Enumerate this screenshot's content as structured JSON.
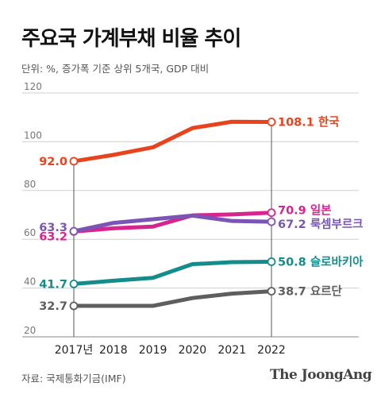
{
  "header": {
    "title": "주요국 가계부채 비율 추이",
    "subtitle": "단위: %, 증가폭 기준 상위 5개국, GDP 대비"
  },
  "footer": {
    "source": "자료: 국제통화기금(IMF)",
    "brand": "The JoongAng"
  },
  "chart_data": {
    "type": "line",
    "x": [
      "2017년",
      "2018",
      "2019",
      "2020",
      "2021",
      "2022"
    ],
    "ylim": [
      20,
      120
    ],
    "yticks": [
      "20",
      "40",
      "60",
      "80",
      "100",
      "120"
    ],
    "grid": true,
    "series": [
      {
        "name": "한국",
        "color": "#e8431c",
        "values": [
          92.0,
          94.6,
          97.7,
          105.6,
          108.2,
          108.1
        ],
        "start_label": "92.0",
        "end_label": "108.1 한국"
      },
      {
        "name": "일본",
        "color": "#d7258f",
        "values": [
          63.2,
          64.5,
          65.2,
          69.8,
          70.2,
          70.9
        ],
        "start_label": "63.2",
        "end_label": "70.9 일본"
      },
      {
        "name": "룩셈부르크",
        "color": "#7a55b5",
        "values": [
          63.3,
          66.7,
          68.2,
          69.7,
          67.5,
          67.2
        ],
        "start_label": "63.3",
        "end_label": "67.2 룩셈부르크"
      },
      {
        "name": "슬로바키아",
        "color": "#158c8c",
        "values": [
          41.7,
          43.0,
          44.2,
          49.8,
          50.6,
          50.8
        ],
        "start_label": "41.7",
        "end_label": "50.8 슬로바키아"
      },
      {
        "name": "요르단",
        "color": "#5e5e5e",
        "values": [
          32.7,
          32.7,
          32.7,
          35.9,
          37.7,
          38.7
        ],
        "start_label": "32.7",
        "end_label": "38.7 요르단"
      }
    ]
  }
}
